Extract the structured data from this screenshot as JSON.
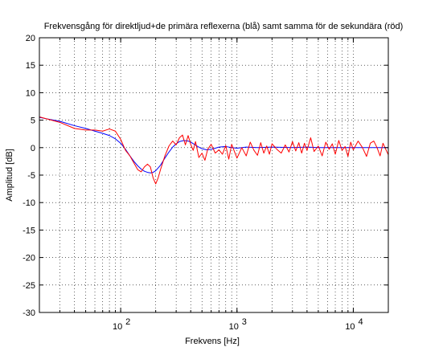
{
  "chart_data": {
    "type": "line",
    "title": "Frekvensgång för direktljud+de primära reflexerna (blå) samt samma för de sekundära (röd)",
    "xlabel": "Frekvens [Hz]",
    "ylabel": "Amplitud [dB]",
    "xscale": "log",
    "xlim": [
      20,
      20000
    ],
    "ylim": [
      -30,
      20
    ],
    "grid": "dotted",
    "x_ticks": [
      {
        "value": 100,
        "base": "10",
        "exp": "2"
      },
      {
        "value": 1000,
        "base": "10",
        "exp": "3"
      },
      {
        "value": 10000,
        "base": "10",
        "exp": "4"
      }
    ],
    "y_ticks": [
      20,
      15,
      10,
      5,
      0,
      -5,
      -10,
      -15,
      -20,
      -25,
      -30
    ],
    "series": [
      {
        "color": "#0000ff",
        "x": [
          20,
          30,
          40,
          50,
          60,
          70,
          80,
          90,
          100,
          110,
          120,
          130,
          140,
          150,
          160,
          170,
          180,
          190,
          200,
          220,
          240,
          260,
          280,
          300,
          320,
          350,
          380,
          400,
          430,
          460,
          500,
          550,
          600,
          650,
          700,
          800,
          900,
          1000,
          1200,
          1500,
          2000,
          3000,
          4000,
          5000,
          7000,
          10000,
          15000,
          20000
        ],
        "y": [
          5.5,
          4.8,
          4.0,
          3.5,
          3.0,
          2.6,
          2.2,
          1.6,
          0.8,
          -0.3,
          -1.5,
          -2.5,
          -3.3,
          -3.9,
          -4.3,
          -4.5,
          -4.6,
          -4.5,
          -4.2,
          -3.2,
          -1.9,
          -0.8,
          0.1,
          0.7,
          1.1,
          1.3,
          1.2,
          1.0,
          0.6,
          0.2,
          -0.2,
          -0.4,
          -0.3,
          -0.1,
          0.1,
          0.2,
          0.0,
          -0.1,
          0.1,
          0.0,
          0.1,
          0.0,
          0.1,
          0.0,
          0.0,
          0.0,
          0.0,
          0.0
        ]
      },
      {
        "color": "#ff0000",
        "x": [
          20,
          30,
          40,
          50,
          60,
          70,
          80,
          90,
          100,
          110,
          120,
          130,
          140,
          150,
          160,
          170,
          180,
          190,
          200,
          210,
          220,
          240,
          260,
          280,
          300,
          320,
          340,
          360,
          380,
          400,
          420,
          440,
          470,
          500,
          530,
          560,
          600,
          650,
          700,
          750,
          800,
          850,
          900,
          950,
          1000,
          1100,
          1200,
          1300,
          1400,
          1500,
          1600,
          1700,
          1800,
          1900,
          2000,
          2200,
          2400,
          2600,
          2800,
          3000,
          3200,
          3400,
          3600,
          3800,
          4000,
          4300,
          4600,
          5000,
          5400,
          5800,
          6200,
          6600,
          7000,
          7500,
          8000,
          8500,
          9000,
          9500,
          10000,
          11000,
          12000,
          13000,
          14000,
          15000,
          16000,
          17000,
          18000,
          19000,
          20000
        ],
        "y": [
          5.6,
          4.6,
          3.5,
          3.2,
          3.2,
          3.0,
          3.4,
          3.0,
          1.5,
          -0.5,
          -1.5,
          -2.8,
          -4.0,
          -4.4,
          -3.5,
          -3.0,
          -3.5,
          -5.5,
          -6.6,
          -5.5,
          -4.0,
          -1.5,
          0.3,
          1.2,
          0.5,
          1.8,
          2.3,
          0.5,
          2.2,
          0.6,
          -0.5,
          1.1,
          -1.8,
          -1.0,
          -2.3,
          -0.3,
          0.6,
          -1.0,
          -0.4,
          -1.2,
          0.4,
          -2.1,
          0.6,
          -0.7,
          -1.9,
          0.0,
          -1.5,
          1.0,
          -0.5,
          -1.4,
          0.9,
          -1.0,
          0.3,
          -1.2,
          0.7,
          -0.3,
          -1.0,
          0.5,
          -0.8,
          1.1,
          -0.6,
          0.9,
          -1.0,
          0.8,
          -0.5,
          1.8,
          -0.7,
          0.3,
          -1.5,
          1.0,
          -0.3,
          0.7,
          -1.2,
          1.3,
          -0.5,
          0.2,
          -1.6,
          1.0,
          -0.4,
          1.2,
          0.0,
          -1.6,
          0.8,
          1.2,
          0.0,
          -1.5,
          0.8,
          -0.3,
          -1.3
        ]
      }
    ]
  }
}
